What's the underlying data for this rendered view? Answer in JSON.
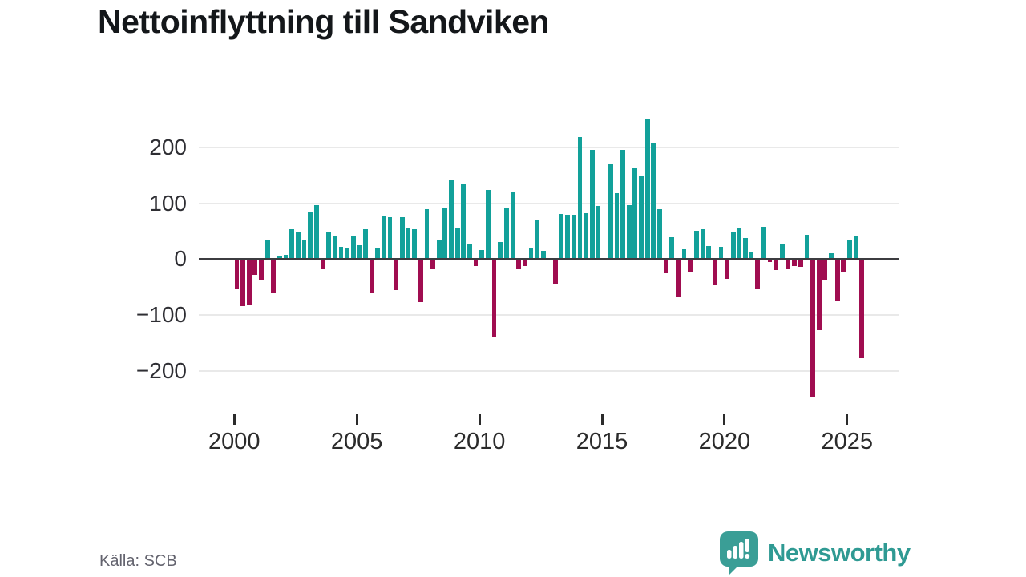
{
  "title": "Nettoinflyttning till Sandviken",
  "source": "Källa: SCB",
  "brand": {
    "name": "Newsworthy"
  },
  "chart_data": {
    "type": "bar",
    "title": "Nettoinflyttning till Sandviken",
    "frequency": "quarterly",
    "start": "2000Q1",
    "end": "2025Q3",
    "labels": [
      "2000Q1",
      "2000Q2",
      "2000Q3",
      "2000Q4",
      "2001Q1",
      "2001Q2",
      "2001Q3",
      "2001Q4",
      "2002Q1",
      "2002Q2",
      "2002Q3",
      "2002Q4",
      "2003Q1",
      "2003Q2",
      "2003Q3",
      "2003Q4",
      "2004Q1",
      "2004Q2",
      "2004Q3",
      "2004Q4",
      "2005Q1",
      "2005Q2",
      "2005Q3",
      "2005Q4",
      "2006Q1",
      "2006Q2",
      "2006Q3",
      "2006Q4",
      "2007Q1",
      "2007Q2",
      "2007Q3",
      "2007Q4",
      "2008Q1",
      "2008Q2",
      "2008Q3",
      "2008Q4",
      "2009Q1",
      "2009Q2",
      "2009Q3",
      "2009Q4",
      "2010Q1",
      "2010Q2",
      "2010Q3",
      "2010Q4",
      "2011Q1",
      "2011Q2",
      "2011Q3",
      "2011Q4",
      "2012Q1",
      "2012Q2",
      "2012Q3",
      "2012Q4",
      "2013Q1",
      "2013Q2",
      "2013Q3",
      "2013Q4",
      "2014Q1",
      "2014Q2",
      "2014Q3",
      "2014Q4",
      "2015Q1",
      "2015Q2",
      "2015Q3",
      "2015Q4",
      "2016Q1",
      "2016Q2",
      "2016Q3",
      "2016Q4",
      "2017Q1",
      "2017Q2",
      "2017Q3",
      "2017Q4",
      "2018Q1",
      "2018Q2",
      "2018Q3",
      "2018Q4",
      "2019Q1",
      "2019Q2",
      "2019Q3",
      "2019Q4",
      "2020Q1",
      "2020Q2",
      "2020Q3",
      "2020Q4",
      "2021Q1",
      "2021Q2",
      "2021Q3",
      "2021Q4",
      "2022Q1",
      "2022Q2",
      "2022Q3",
      "2022Q4",
      "2023Q1",
      "2023Q2",
      "2023Q3",
      "2023Q4",
      "2024Q1",
      "2024Q2",
      "2024Q3",
      "2024Q4",
      "2025Q1",
      "2025Q2",
      "2025Q3"
    ],
    "values": [
      -53,
      -84,
      -81,
      -28,
      -38,
      34,
      -60,
      6,
      8,
      53,
      48,
      34,
      85,
      96,
      -18,
      50,
      42,
      22,
      20,
      42,
      25,
      54,
      -62,
      20,
      78,
      75,
      -55,
      75,
      56,
      53,
      -77,
      90,
      -18,
      35,
      91,
      142,
      56,
      136,
      26,
      -13,
      16,
      124,
      -139,
      30,
      91,
      119,
      -18,
      -12,
      21,
      71,
      15,
      0,
      -44,
      81,
      80,
      79,
      219,
      82,
      196,
      95,
      0,
      170,
      118,
      196,
      97,
      162,
      148,
      250,
      207,
      89,
      -26,
      39,
      -69,
      18,
      -24,
      51,
      54,
      24,
      -47,
      22,
      -36,
      48,
      57,
      38,
      14,
      -53,
      58,
      -5,
      -20,
      28,
      -18,
      -12,
      -14,
      44,
      -248,
      -127,
      -38,
      11,
      -75,
      -22,
      35,
      41,
      -177
    ],
    "x_tick_years": [
      2000,
      2005,
      2010,
      2015,
      2020,
      2025
    ],
    "y_ticks": [
      200,
      100,
      0,
      -100,
      -200
    ],
    "ylim": [
      -260,
      265
    ],
    "grid": "horizontal",
    "legend": "none",
    "positive_color": "#12A19A",
    "negative_color": "#A00D50"
  }
}
